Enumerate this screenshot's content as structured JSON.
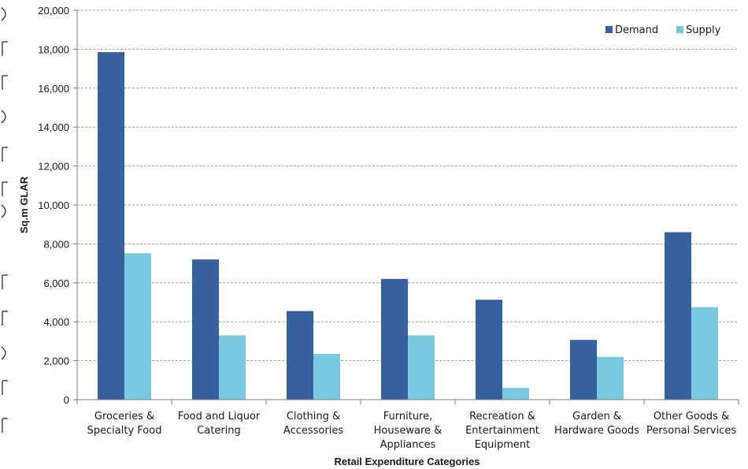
{
  "chart_data": {
    "type": "bar",
    "title": "",
    "xlabel": "Retail Expenditure Categories",
    "ylabel": "Sq.m GLAR",
    "ylim": [
      0,
      20000
    ],
    "yticks": [
      0,
      2000,
      4000,
      6000,
      8000,
      10000,
      12000,
      14000,
      16000,
      18000,
      20000
    ],
    "ytick_labels": [
      "0",
      "2,000",
      "4,000",
      "6,000",
      "8,000",
      "10,000",
      "12,000",
      "14,000",
      "16,000",
      "18,000",
      "20,000"
    ],
    "grid": true,
    "legend_position": "top-right",
    "categories": [
      [
        "Groceries &",
        "Specialty Food"
      ],
      [
        "Food and Liquor",
        "Catering"
      ],
      [
        "Clothing &",
        "Accessories"
      ],
      [
        "Furniture,",
        "Houseware &",
        "Appliances"
      ],
      [
        "Recreation &",
        "Entertainment",
        "Equipment"
      ],
      [
        "Garden &",
        "Hardware Goods"
      ],
      [
        "Other Goods &",
        "Personal Services"
      ]
    ],
    "series": [
      {
        "name": "Demand",
        "color": "#37619c",
        "values": [
          17850,
          7200,
          4550,
          6200,
          5130,
          3070,
          8600
        ]
      },
      {
        "name": "Supply",
        "color": "#79cae0",
        "values": [
          7520,
          3300,
          2350,
          3300,
          600,
          2200,
          4750
        ]
      }
    ]
  }
}
